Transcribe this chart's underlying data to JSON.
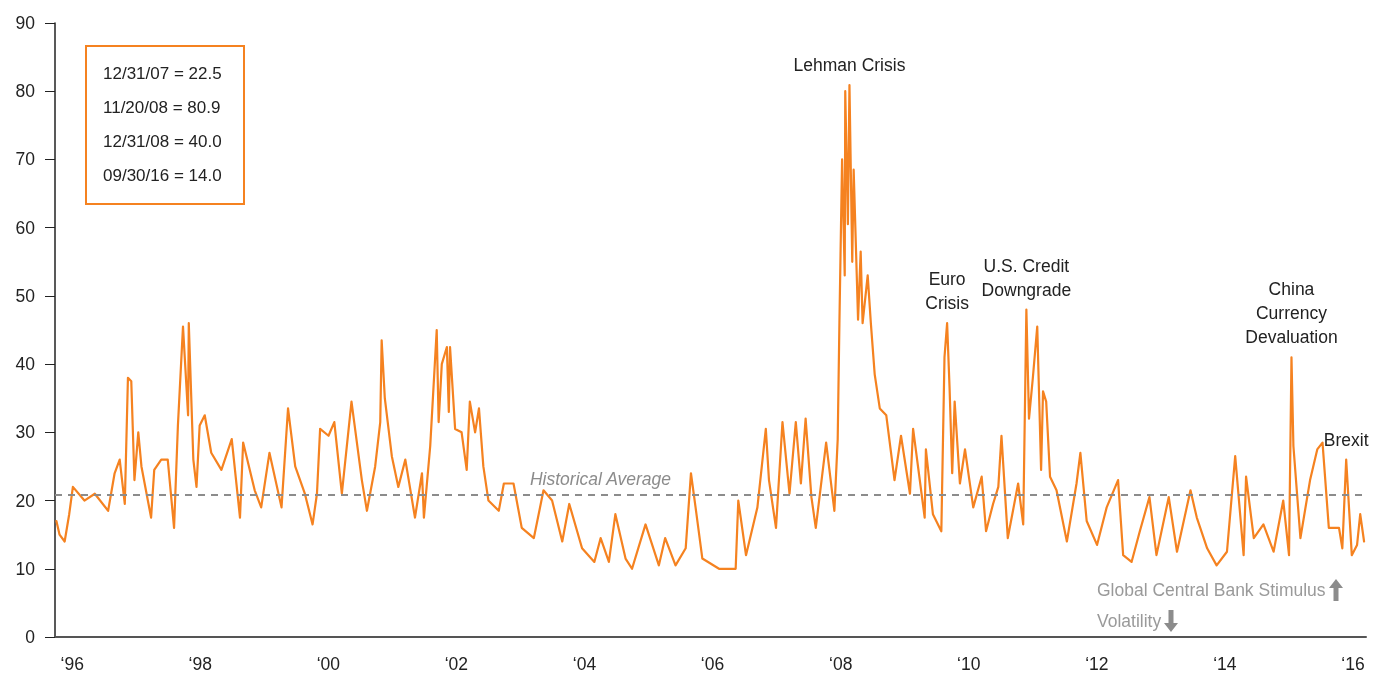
{
  "chart_data": {
    "type": "line",
    "x": [
      "1996-07-03",
      "1996-07-21",
      "1996-08-19",
      "1996-09-14",
      "1996-10-05",
      "1996-12-10",
      "1997-02-07",
      "1997-04-24",
      "1997-05-31",
      "1997-06-29",
      "1997-07-28",
      "1997-08-15",
      "1997-09-03",
      "1997-09-21",
      "1997-10-13",
      "1997-10-31",
      "1997-12-25",
      "1998-01-12",
      "1998-02-21",
      "1998-03-30",
      "1998-05-05",
      "1998-05-27",
      "1998-06-25",
      "1998-07-24",
      "1998-07-28",
      "1998-08-23",
      "1998-09-10",
      "1998-09-28",
      "1998-10-27",
      "1998-12-03",
      "1999-01-30",
      "1999-03-30",
      "1999-05-16",
      "1999-06-03",
      "1999-08-08",
      "1999-09-14",
      "1999-10-31",
      "2000-01-08",
      "2000-02-14",
      "2000-03-26",
      "2000-05-20",
      "2000-07-03",
      "2000-07-28",
      "2000-08-15",
      "2000-10-02",
      "2000-11-04",
      "2000-12-17",
      "2001-02-10",
      "2001-04-10",
      "2001-05-09",
      "2001-06-25",
      "2001-07-24",
      "2001-08-01",
      "2001-08-19",
      "2001-09-28",
      "2001-11-04",
      "2001-12-14",
      "2002-02-07",
      "2002-03-19",
      "2002-03-30",
      "2002-05-05",
      "2002-06-11",
      "2002-06-22",
      "2002-07-10",
      "2002-08-08",
      "2002-08-19",
      "2002-08-26",
      "2002-09-24",
      "2002-10-31",
      "2002-11-29",
      "2002-12-17",
      "2003-01-16",
      "2003-02-07",
      "2003-03-04",
      "2003-04-02",
      "2003-05-31",
      "2003-06-29",
      "2003-08-23",
      "2003-10-09",
      "2003-12-17",
      "2004-02-10",
      "2004-03-30",
      "2004-05-27",
      "2004-07-06",
      "2004-09-17",
      "2004-11-26",
      "2005-01-01",
      "2005-02-17",
      "2005-03-26",
      "2005-05-23",
      "2005-06-29",
      "2005-09-14",
      "2005-11-29",
      "2006-01-04",
      "2006-03-04",
      "2006-05-01",
      "2006-05-31",
      "2006-06-29",
      "2006-08-04",
      "2006-11-07",
      "2007-02-10",
      "2007-02-25",
      "2007-04-10",
      "2007-06-14",
      "2007-08-01",
      "2007-08-19",
      "2007-09-28",
      "2007-11-04",
      "2007-12-14",
      "2008-01-19",
      "2008-02-17",
      "2008-03-15",
      "2008-04-17",
      "2008-05-12",
      "2008-07-10",
      "2008-08-26",
      "2008-09-14",
      "2008-09-24",
      "2008-10-09",
      "2008-10-24",
      "2008-10-27",
      "2008-11-11",
      "2008-11-20",
      "2008-12-06",
      "2008-12-14",
      "2009-01-08",
      "2009-01-23",
      "2009-02-03",
      "2009-03-04",
      "2009-03-22",
      "2009-04-13",
      "2009-05-12",
      "2009-06-18",
      "2009-08-04",
      "2009-09-10",
      "2009-10-31",
      "2009-11-18",
      "2010-01-23",
      "2010-01-30",
      "2010-03-11",
      "2010-04-28",
      "2010-05-16",
      "2010-05-31",
      "2010-06-14",
      "2010-06-29",
      "2010-07-13",
      "2010-08-12",
      "2010-09-10",
      "2010-10-27",
      "2010-12-14",
      "2011-01-08",
      "2011-02-17",
      "2011-03-19",
      "2011-04-06",
      "2011-05-12",
      "2011-07-10",
      "2011-08-08",
      "2011-08-26",
      "2011-09-10",
      "2011-10-02",
      "2011-10-27",
      "2011-11-18",
      "2011-11-29",
      "2011-12-17",
      "2012-01-08",
      "2012-02-14",
      "2012-04-13",
      "2012-06-07",
      "2012-06-29",
      "2012-08-04",
      "2012-10-02",
      "2012-11-26",
      "2013-01-30",
      "2013-02-28",
      "2013-04-17",
      "2013-06-03",
      "2013-07-28",
      "2013-09-06",
      "2013-11-15",
      "2014-01-01",
      "2014-03-19",
      "2014-04-24",
      "2014-06-22",
      "2014-08-15",
      "2014-10-13",
      "2014-11-29",
      "2015-01-16",
      "2015-01-30",
      "2015-03-15",
      "2015-05-09",
      "2015-07-06",
      "2015-08-30",
      "2015-10-02",
      "2015-10-16",
      "2015-10-27",
      "2015-12-06",
      "2016-01-30",
      "2016-03-11",
      "2016-04-10",
      "2016-05-16",
      "2016-07-13",
      "2016-08-01",
      "2016-08-23",
      "2016-09-24",
      "2016-10-24",
      "2016-11-11",
      "2016-12-03"
    ],
    "values": [
      17,
      15,
      14,
      18,
      22,
      20,
      21,
      18.5,
      24,
      26,
      19.5,
      38,
      37.5,
      23,
      30,
      25,
      17.5,
      24.5,
      26,
      26,
      16,
      31,
      45.5,
      32.5,
      46,
      26,
      22,
      31,
      32.5,
      27,
      24.5,
      29,
      17.5,
      28.5,
      21.5,
      19,
      27,
      19,
      33.5,
      25,
      21,
      16.5,
      21,
      30.5,
      29.5,
      31.5,
      21,
      34.5,
      23,
      18.5,
      25,
      31.5,
      43.5,
      35,
      26.5,
      22,
      26,
      17.5,
      24,
      17.5,
      28,
      45,
      31.5,
      40,
      42.5,
      33,
      42.5,
      30.5,
      30,
      24.5,
      34.5,
      30,
      33.5,
      25,
      20,
      18.5,
      22.5,
      22.5,
      16,
      14.5,
      21.5,
      20,
      14,
      19.5,
      13,
      11,
      14.5,
      11,
      18,
      11.5,
      10,
      16.5,
      10.5,
      14.5,
      10.5,
      13,
      24,
      18.5,
      11.5,
      10,
      10,
      20,
      12,
      19,
      30.5,
      23,
      16,
      31.5,
      21,
      31.5,
      22.5,
      32,
      20.5,
      16,
      28.5,
      18.5,
      29,
      46.5,
      70,
      53,
      80,
      60.5,
      80.9,
      55,
      68.5,
      46.5,
      56.5,
      46,
      53,
      46,
      38.5,
      33.5,
      32.5,
      23,
      29.5,
      21,
      30.5,
      17.5,
      27.5,
      18,
      15.5,
      41,
      46,
      36.5,
      24,
      34.5,
      22.5,
      27.5,
      19,
      23.5,
      15.5,
      19.5,
      22,
      29.5,
      14.5,
      22.5,
      16.5,
      48,
      32,
      38,
      45.5,
      24.5,
      36,
      34.5,
      23.5,
      21.5,
      14,
      22.5,
      27,
      17,
      13.5,
      19,
      23,
      12,
      11,
      15.5,
      20.5,
      12,
      20.5,
      12.5,
      21.5,
      17.5,
      13,
      10.5,
      12.5,
      26.5,
      12,
      23.5,
      14.5,
      16.5,
      12.5,
      20,
      12,
      41,
      28,
      14.5,
      23,
      27.5,
      28.5,
      16,
      16,
      13,
      26,
      12,
      13.5,
      18,
      14
    ],
    "color": "#f58220",
    "xlim": [
      "1996-06-25",
      "2016-12-14"
    ],
    "xticks": [
      {
        "value": "1996-10-01",
        "label": "‘96"
      },
      {
        "value": "1998-10-01",
        "label": "‘98"
      },
      {
        "value": "2000-10-01",
        "label": "‘00"
      },
      {
        "value": "2002-10-01",
        "label": "‘02"
      },
      {
        "value": "2004-10-01",
        "label": "‘04"
      },
      {
        "value": "2006-10-01",
        "label": "‘06"
      },
      {
        "value": "2008-10-01",
        "label": "‘08"
      },
      {
        "value": "2010-10-01",
        "label": "‘10"
      },
      {
        "value": "2012-10-01",
        "label": "‘12"
      },
      {
        "value": "2014-10-01",
        "label": "‘14"
      },
      {
        "value": "2016-10-01",
        "label": "‘16"
      }
    ],
    "ylim": [
      0,
      90
    ],
    "yticks": [
      0,
      10,
      20,
      30,
      40,
      50,
      60,
      70,
      80,
      90
    ],
    "ref_lines": [
      {
        "axis": "y",
        "value": 20.8,
        "label": "Historical Average",
        "color": "#8c8c8c",
        "line_style": "dashed"
      }
    ],
    "annotations": [
      "12/31/07 = 22.5\n11/20/08 = 80.9\n12/31/08 = 40.0\n09/30/16 = 14.0",
      "Global Central Bank Stimulus",
      "Volatility",
      {
        "text": "Lehman Crisis",
        "x": "2008-11-20",
        "y": 80.9
      },
      {
        "text": "Euro\nCrisis",
        "x": "2010-05-31",
        "y": 46
      },
      {
        "text": "U.S. Credit\nDowngrade",
        "x": "2011-08-26",
        "y": 48
      },
      {
        "text": "China\nCurrency\nDevaluation",
        "x": "2015-10-16",
        "y": 41
      },
      {
        "text": "Brexit",
        "x": "2016-08-23",
        "y": 26
      }
    ]
  }
}
